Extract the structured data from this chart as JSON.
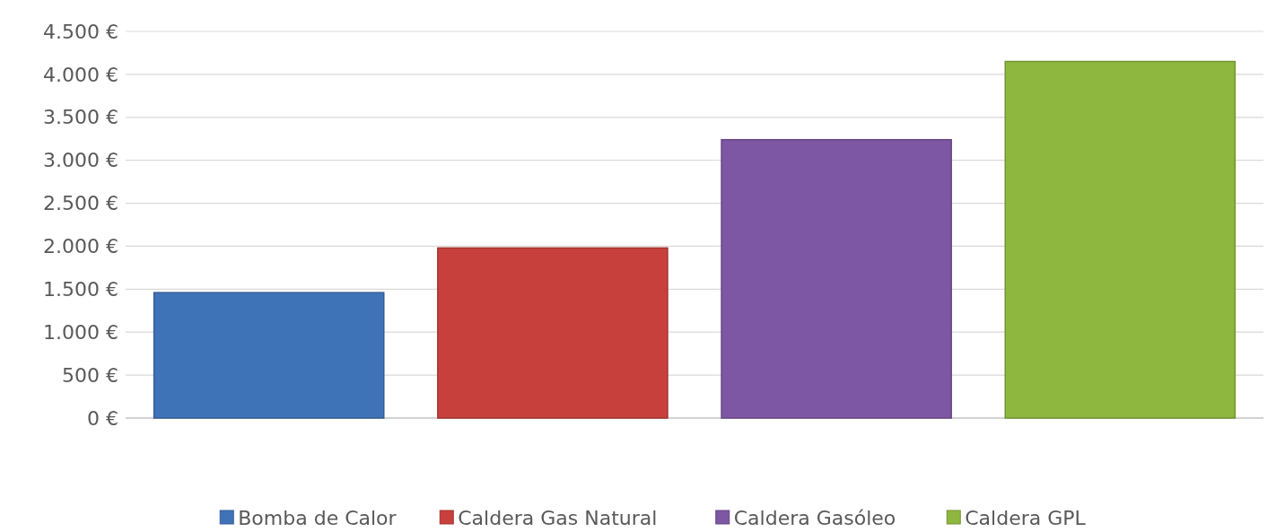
{
  "chart_data": {
    "type": "bar",
    "categories": [
      null,
      null,
      null,
      null
    ],
    "series": [
      {
        "name": "Bomba de Calor",
        "color": "#3f73b8",
        "values": [
          1460,
          null,
          null,
          null
        ]
      },
      {
        "name": "Caldera Gas Natural",
        "color": "#c8403c",
        "values": [
          null,
          1980,
          null,
          null
        ]
      },
      {
        "name": "Caldera Gasóleo",
        "color": "#7d57a3",
        "values": [
          null,
          null,
          3240,
          null
        ]
      },
      {
        "name": "Caldera GPL",
        "color": "#8db73f",
        "values": [
          null,
          null,
          null,
          4150
        ]
      }
    ],
    "ylim": [
      0,
      4500
    ],
    "yticks": [
      {
        "value": 0,
        "label": "0 €"
      },
      {
        "value": 500,
        "label": "500 €"
      },
      {
        "value": 1000,
        "label": "1.000 €"
      },
      {
        "value": 1500,
        "label": "1.500 €"
      },
      {
        "value": 2000,
        "label": "2.000 €"
      },
      {
        "value": 2500,
        "label": "2.500 €"
      },
      {
        "value": 3000,
        "label": "3.000 €"
      },
      {
        "value": 3500,
        "label": "3.500 €"
      },
      {
        "value": 4000,
        "label": "4.000 €"
      },
      {
        "value": 4500,
        "label": "4.500 €"
      }
    ],
    "grid": "y",
    "legend": "bottom"
  }
}
